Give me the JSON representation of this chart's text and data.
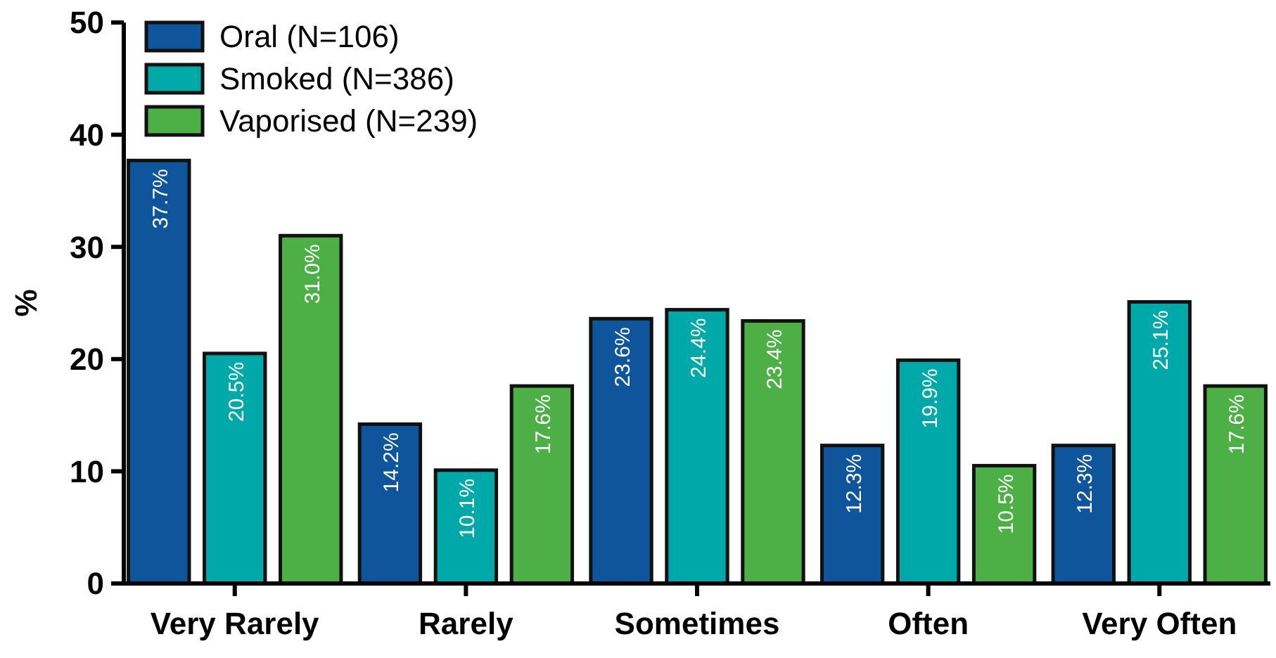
{
  "chart_data": {
    "type": "bar",
    "ylabel": "%",
    "categories": [
      "Very Rarely",
      "Rarely",
      "Sometimes",
      "Often",
      "Very Often"
    ],
    "series": [
      {
        "name": "Oral (N=106)",
        "color": "#0f559c",
        "values": [
          37.7,
          14.2,
          23.6,
          12.3,
          12.3
        ],
        "value_labels": [
          "37.7%",
          "14.2%",
          "23.6%",
          "12.3%",
          "12.3%"
        ]
      },
      {
        "name": "Smoked (N=386)",
        "color": "#00a9a9",
        "values": [
          20.5,
          10.1,
          24.4,
          19.9,
          25.1
        ],
        "value_labels": [
          "20.5%",
          "10.1%",
          "24.4%",
          "19.9%",
          "25.1%"
        ]
      },
      {
        "name": "Vaporised (N=239)",
        "color": "#4db047",
        "values": [
          31.0,
          17.6,
          23.4,
          10.5,
          17.6
        ],
        "value_labels": [
          "31.0%",
          "17.6%",
          "23.4%",
          "10.5%",
          "17.6%"
        ]
      }
    ],
    "ylim": [
      0,
      50
    ],
    "yticks": [
      0,
      10,
      20,
      30,
      40,
      50
    ],
    "legend": "top left",
    "grid": false
  }
}
